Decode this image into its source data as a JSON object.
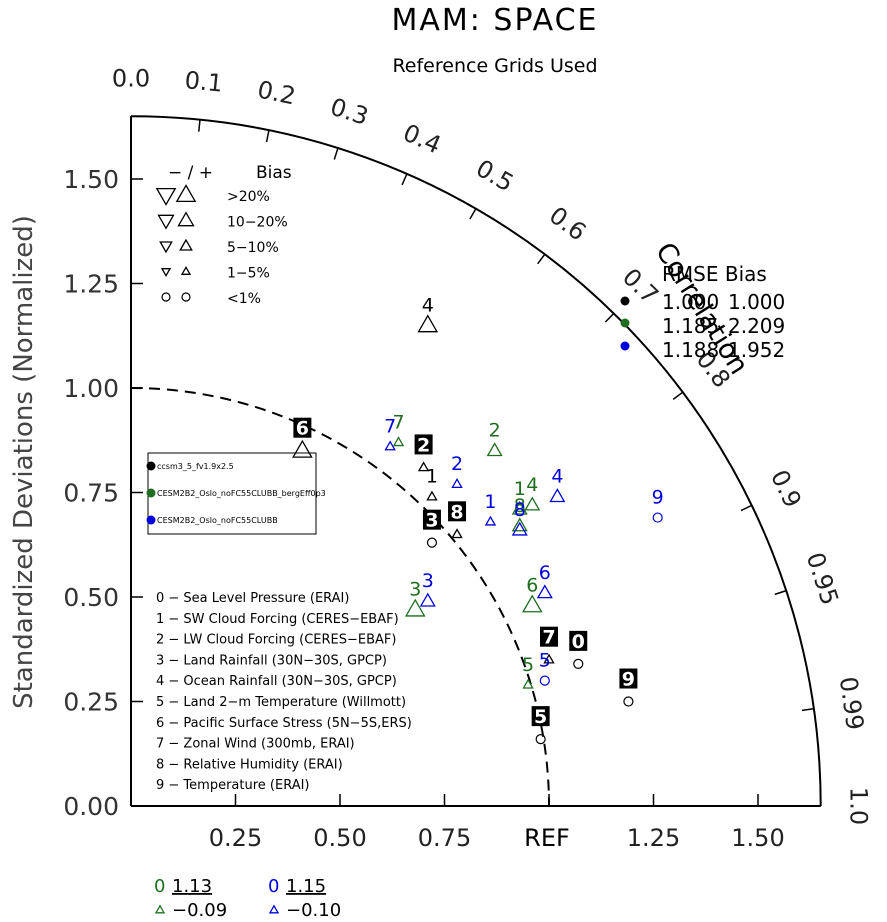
{
  "chart_data": {
    "type": "scatter",
    "subtype": "taylor-diagram",
    "title": "MAM: SPACE",
    "subtitle": "Reference Grids Used",
    "ylabel": "Standardized Deviations (Normalized)",
    "correlation_label": "Correlation",
    "ref_label": "REF",
    "x_ticks": [
      "0.25",
      "0.50",
      "0.75",
      "REF",
      "1.25",
      "1.50"
    ],
    "y_ticks": [
      "0.00",
      "0.25",
      "0.50",
      "0.75",
      "1.00",
      "1.25",
      "1.50"
    ],
    "corr_ticks": [
      "0.0",
      "0.1",
      "0.2",
      "0.3",
      "0.4",
      "0.5",
      "0.6",
      "0.7",
      "0.8",
      "0.9",
      "0.95",
      "0.99",
      "1.0"
    ],
    "std_range": [
      0,
      1.65
    ],
    "bias_legend": {
      "header_sym": "− / +",
      "header_label": "Bias",
      "rows": [
        {
          "range": ">20%"
        },
        {
          "range": "10−20%"
        },
        {
          "range": "5−10%"
        },
        {
          "range": "1−5%"
        },
        {
          "range": "<1%"
        }
      ]
    },
    "rmse_table": {
      "header": "RMSE Bias",
      "rows": [
        {
          "rmse": "1.000",
          "bias": "1.000"
        },
        {
          "rmse": "1.185",
          "bias": "2.209"
        },
        {
          "rmse": "1.188",
          "bias": "1.952"
        }
      ]
    },
    "series": [
      {
        "name": "ccsm3_5_fv1.9x2.5",
        "color": "#000000"
      },
      {
        "name": "CESM2B2_Oslo_noFC55CLUBB_bergEff0p3",
        "color": "#1f6e1f"
      },
      {
        "name": "CESM2B2_Oslo_noFC55CLUBB",
        "color": "#0000dd"
      }
    ],
    "series_points": [
      {
        "series": 0,
        "label": "0",
        "marker": "circle",
        "x": 1.07,
        "y": 0.34
      },
      {
        "series": 0,
        "label": "1",
        "marker": "tri-up-small",
        "x": 0.72,
        "y": 0.74
      },
      {
        "series": 0,
        "label": "2",
        "marker": "tri-up-small",
        "x": 0.7,
        "y": 0.81
      },
      {
        "series": 0,
        "label": "3",
        "marker": "circle",
        "x": 0.72,
        "y": 0.63
      },
      {
        "series": 0,
        "label": "4",
        "marker": "tri-up-large",
        "x": 0.71,
        "y": 1.15
      },
      {
        "series": 0,
        "label": "5",
        "marker": "circle",
        "x": 0.98,
        "y": 0.16
      },
      {
        "series": 0,
        "label": "6",
        "marker": "tri-up-large",
        "x": 0.41,
        "y": 0.85
      },
      {
        "series": 0,
        "label": "7",
        "marker": "tri-up-small",
        "x": 1.0,
        "y": 0.35
      },
      {
        "series": 0,
        "label": "8",
        "marker": "tri-up-small",
        "x": 0.78,
        "y": 0.65
      },
      {
        "series": 0,
        "label": "9",
        "marker": "circle",
        "x": 1.19,
        "y": 0.25
      },
      {
        "series": 1,
        "label": "1",
        "marker": "tri-up-med",
        "x": 0.93,
        "y": 0.71
      },
      {
        "series": 1,
        "label": "2",
        "marker": "tri-up-med",
        "x": 0.87,
        "y": 0.85
      },
      {
        "series": 1,
        "label": "3",
        "marker": "tri-up-large",
        "x": 0.68,
        "y": 0.47
      },
      {
        "series": 1,
        "label": "4",
        "marker": "tri-up-med",
        "x": 0.96,
        "y": 0.72
      },
      {
        "series": 1,
        "label": "5",
        "marker": "tri-up-small",
        "x": 0.95,
        "y": 0.29
      },
      {
        "series": 1,
        "label": "6",
        "marker": "tri-up-large",
        "x": 0.96,
        "y": 0.48
      },
      {
        "series": 1,
        "label": "7",
        "marker": "tri-up-small",
        "x": 0.64,
        "y": 0.87
      },
      {
        "series": 1,
        "label": "8",
        "marker": "tri-up-med",
        "x": 0.93,
        "y": 0.67
      },
      {
        "series": 2,
        "label": "1",
        "marker": "tri-up-small",
        "x": 0.86,
        "y": 0.68
      },
      {
        "series": 2,
        "label": "2",
        "marker": "tri-up-small",
        "x": 0.78,
        "y": 0.77
      },
      {
        "series": 2,
        "label": "3",
        "marker": "tri-up-med",
        "x": 0.71,
        "y": 0.49
      },
      {
        "series": 2,
        "label": "4",
        "marker": "tri-up-med",
        "x": 1.02,
        "y": 0.74
      },
      {
        "series": 2,
        "label": "5",
        "marker": "circle",
        "x": 0.99,
        "y": 0.3
      },
      {
        "series": 2,
        "label": "6",
        "marker": "tri-up-med",
        "x": 0.99,
        "y": 0.51
      },
      {
        "series": 2,
        "label": "7",
        "marker": "tri-up-small",
        "x": 0.62,
        "y": 0.86
      },
      {
        "series": 2,
        "label": "8",
        "marker": "tri-up-med",
        "x": 0.93,
        "y": 0.66
      },
      {
        "series": 2,
        "label": "9",
        "marker": "circle",
        "x": 1.26,
        "y": 0.69
      }
    ],
    "variables": [
      "0 − Sea Level Pressure (ERAI)",
      "1 − SW Cloud Forcing (CERES−EBAF)",
      "2 − LW Cloud Forcing (CERES−EBAF)",
      "3 − Land Rainfall (30N−30S, GPCP)",
      "4 − Ocean Rainfall (30N−30S, GPCP)",
      "5 − Land 2−m Temperature (Willmott)",
      "6 − Pacific Surface Stress (5N−5S,ERS)",
      "7 − Zonal Wind (300mb, ERAI)",
      "8 − Relative Humidity (ERAI)",
      "9 − Temperature (ERAI)"
    ],
    "footer_stats": [
      {
        "series": 1,
        "label0": "0",
        "value0": "1.13",
        "value1": "−0.09"
      },
      {
        "series": 2,
        "label0": "0",
        "value0": "1.15",
        "value1": "−0.10"
      }
    ]
  }
}
